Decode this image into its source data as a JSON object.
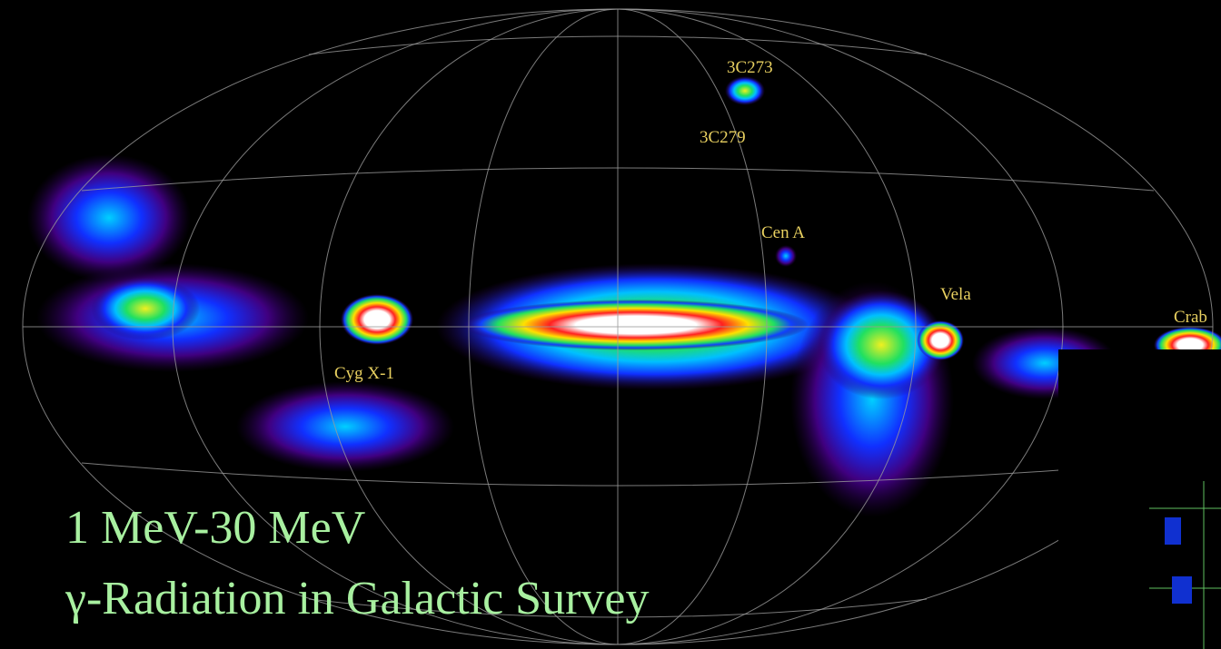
{
  "map": {
    "sources": [
      "3C273",
      "3C279",
      "Cen A",
      "Vela",
      "Crab",
      "Cyg X-1"
    ]
  },
  "caption": {
    "line1": "1 MeV-30 MeV",
    "line2": "γ-Radiation in Galactic Survey"
  }
}
